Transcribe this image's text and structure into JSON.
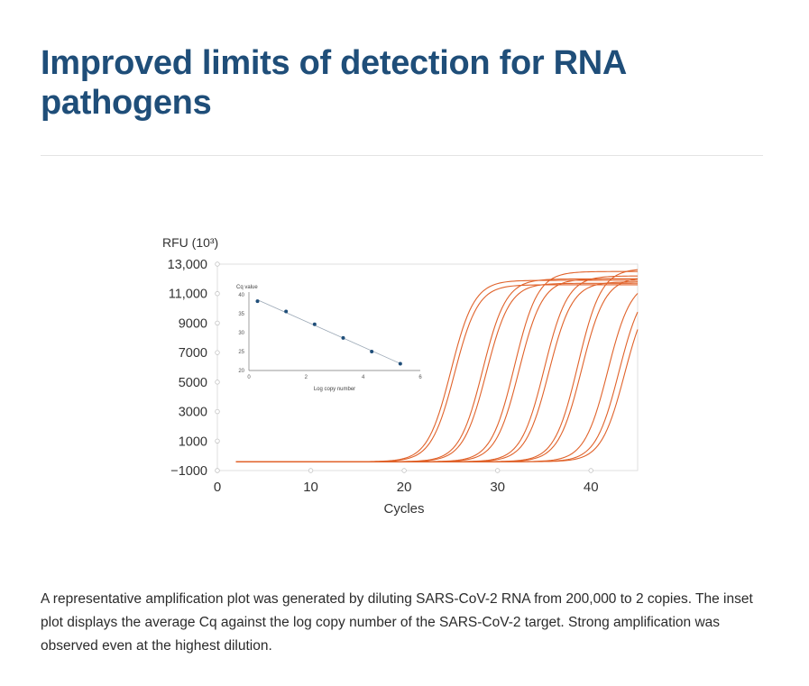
{
  "page": {
    "title": "Improved limits of detection for RNA pathogens",
    "caption": "A representative amplification plot was generated by diluting SARS-CoV-2 RNA from 200,000 to 2 copies. The inset plot displays the average Cq against the log copy number of the SARS-CoV-2 target. Strong amplification was observed even at the highest dilution."
  },
  "colors": {
    "title": "#1f4e79",
    "curve": "#e0622a",
    "inset_marker": "#1f4e79"
  },
  "chart_data": [
    {
      "type": "line",
      "ylabel": "RFU (10³)",
      "xlabel": "Cycles",
      "xlim": [
        0,
        45
      ],
      "ylim": [
        -1000,
        13000
      ],
      "xticks": [
        0,
        10,
        20,
        30,
        40
      ],
      "yticks": [
        13000,
        11000,
        9000,
        7000,
        5000,
        3000,
        1000,
        -1000
      ],
      "ytick_labels": [
        "13,000",
        "11,000",
        "9000",
        "7000",
        "5000",
        "3000",
        "1000",
        "−1000"
      ],
      "grid": false,
      "series": [
        {
          "midpoint": 25.0,
          "plateau": 11900,
          "start": 2
        },
        {
          "midpoint": 25.4,
          "plateau": 11600,
          "start": 2
        },
        {
          "midpoint": 28.4,
          "plateau": 12000,
          "start": 2
        },
        {
          "midpoint": 28.8,
          "plateau": 11700,
          "start": 2
        },
        {
          "midpoint": 31.8,
          "plateau": 12500,
          "start": 2
        },
        {
          "midpoint": 32.3,
          "plateau": 12000,
          "start": 2
        },
        {
          "midpoint": 35.0,
          "plateau": 12200,
          "start": 2
        },
        {
          "midpoint": 35.5,
          "plateau": 11800,
          "start": 2
        },
        {
          "midpoint": 38.6,
          "plateau": 12700,
          "start": 2
        },
        {
          "midpoint": 39.0,
          "plateau": 12100,
          "start": 2
        },
        {
          "midpoint": 41.8,
          "plateau": 11900,
          "start": 2
        },
        {
          "midpoint": 43.0,
          "plateau": 11800,
          "start": 2
        },
        {
          "midpoint": 43.6,
          "plateau": 11500,
          "start": 2
        }
      ]
    },
    {
      "type": "scatter",
      "title": "Cq value",
      "xlabel": "Log copy number",
      "xlim": [
        0,
        6
      ],
      "ylim": [
        20,
        40
      ],
      "xticks": [
        0,
        2,
        4,
        6
      ],
      "yticks": [
        40,
        35,
        30,
        25,
        20
      ],
      "x": [
        0.3,
        1.3,
        2.3,
        3.3,
        4.3,
        5.3
      ],
      "y": [
        38.3,
        35.6,
        32.2,
        28.6,
        25.0,
        21.8
      ],
      "trendline": true
    }
  ]
}
